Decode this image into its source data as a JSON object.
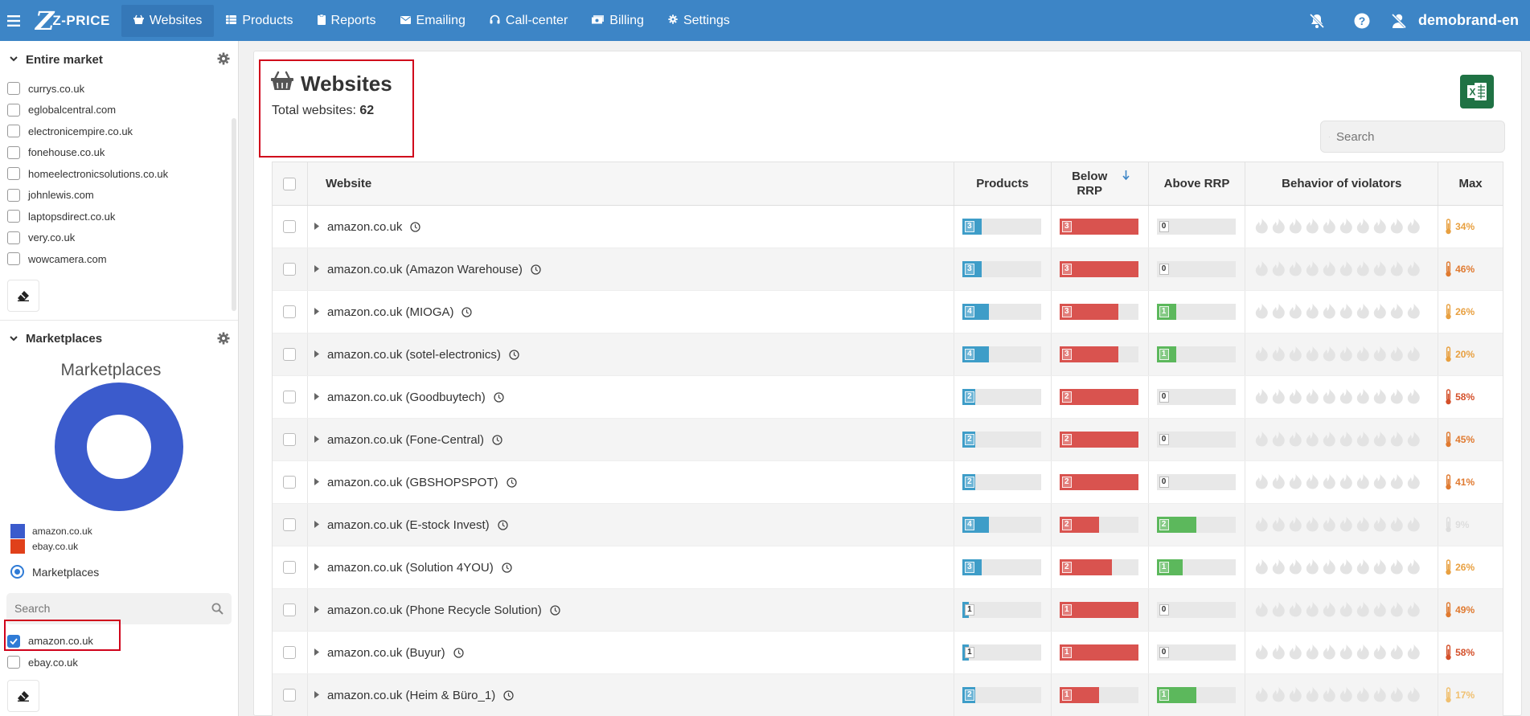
{
  "app": {
    "logo_mark": "Z",
    "logo_text": "Z-PRICE",
    "username": "demobrand-en"
  },
  "nav": [
    {
      "label": "Websites",
      "icon": "basket-icon",
      "active": true
    },
    {
      "label": "Products",
      "icon": "list-icon"
    },
    {
      "label": "Reports",
      "icon": "report-icon"
    },
    {
      "label": "Emailing",
      "icon": "envelope-icon"
    },
    {
      "label": "Call-center",
      "icon": "headset-icon"
    },
    {
      "label": "Billing",
      "icon": "money-icon"
    },
    {
      "label": "Settings",
      "icon": "gear-icon"
    }
  ],
  "sidebar": {
    "market_title": "Entire market",
    "market_sites": [
      "currys.co.uk",
      "eglobalcentral.com",
      "electronicempire.co.uk",
      "fonehouse.co.uk",
      "homeelectronicsolutions.co.uk",
      "johnlewis.com",
      "laptopsdirect.co.uk",
      "very.co.uk",
      "wowcamera.com"
    ],
    "marketplaces_title": "Marketplaces",
    "chart_title": "Marketplaces",
    "legend": [
      {
        "label": "amazon.co.uk",
        "color": "#3b5bcc"
      },
      {
        "label": "ebay.co.uk",
        "color": "#e0401a"
      }
    ],
    "radio_label": "Marketplaces",
    "search_placeholder": "Search",
    "marketplace_options": [
      {
        "label": "amazon.co.uk",
        "checked": true
      },
      {
        "label": "ebay.co.uk",
        "checked": false
      }
    ]
  },
  "chart_data": {
    "type": "pie",
    "title": "Marketplaces",
    "categories": [
      "amazon.co.uk",
      "ebay.co.uk"
    ],
    "values": [
      100,
      0
    ],
    "colors": [
      "#3b5bcc",
      "#e0401a"
    ],
    "legend": "bottom-left"
  },
  "main": {
    "title": "Websites",
    "total_label": "Total websites:",
    "total_value": "62",
    "search_placeholder": "Search",
    "columns": {
      "website": "Website",
      "products": "Products",
      "below": "Below RRP",
      "above": "Above RRP",
      "behavior": "Behavior of violators",
      "max": "Max"
    },
    "rows": [
      {
        "name": "amazon.co.uk",
        "products": 3,
        "below": 3,
        "above": 0,
        "max": "34%",
        "heat": "#e8a040"
      },
      {
        "name": "amazon.co.uk (Amazon Warehouse)",
        "products": 3,
        "below": 3,
        "above": 0,
        "max": "46%",
        "heat": "#e07a30"
      },
      {
        "name": "amazon.co.uk (MIOGA)",
        "products": 4,
        "below": 3,
        "above": 1,
        "max": "26%",
        "heat": "#e8a040"
      },
      {
        "name": "amazon.co.uk (sotel-electronics)",
        "products": 4,
        "below": 3,
        "above": 1,
        "max": "20%",
        "heat": "#e8a040"
      },
      {
        "name": "amazon.co.uk (Goodbuytech)",
        "products": 2,
        "below": 2,
        "above": 0,
        "max": "58%",
        "heat": "#d4502a"
      },
      {
        "name": "amazon.co.uk (Fone-Central)",
        "products": 2,
        "below": 2,
        "above": 0,
        "max": "45%",
        "heat": "#e07a30"
      },
      {
        "name": "amazon.co.uk (GBSHOPSPOT)",
        "products": 2,
        "below": 2,
        "above": 0,
        "max": "41%",
        "heat": "#e07a30"
      },
      {
        "name": "amazon.co.uk (E-stock Invest)",
        "products": 4,
        "below": 2,
        "above": 2,
        "max": "9%",
        "heat": "#dddddd"
      },
      {
        "name": "amazon.co.uk (Solution 4YOU)",
        "products": 3,
        "below": 2,
        "above": 1,
        "max": "26%",
        "heat": "#e8a040"
      },
      {
        "name": "amazon.co.uk (Phone Recycle Solution)",
        "products": 1,
        "below": 1,
        "above": 0,
        "max": "49%",
        "heat": "#e07a30"
      },
      {
        "name": "amazon.co.uk (Buyur)",
        "products": 1,
        "below": 1,
        "above": 0,
        "max": "58%",
        "heat": "#d4502a"
      },
      {
        "name": "amazon.co.uk (Heim & Büro_1)",
        "products": 2,
        "below": 1,
        "above": 1,
        "max": "17%",
        "heat": "#f0c070"
      }
    ]
  }
}
